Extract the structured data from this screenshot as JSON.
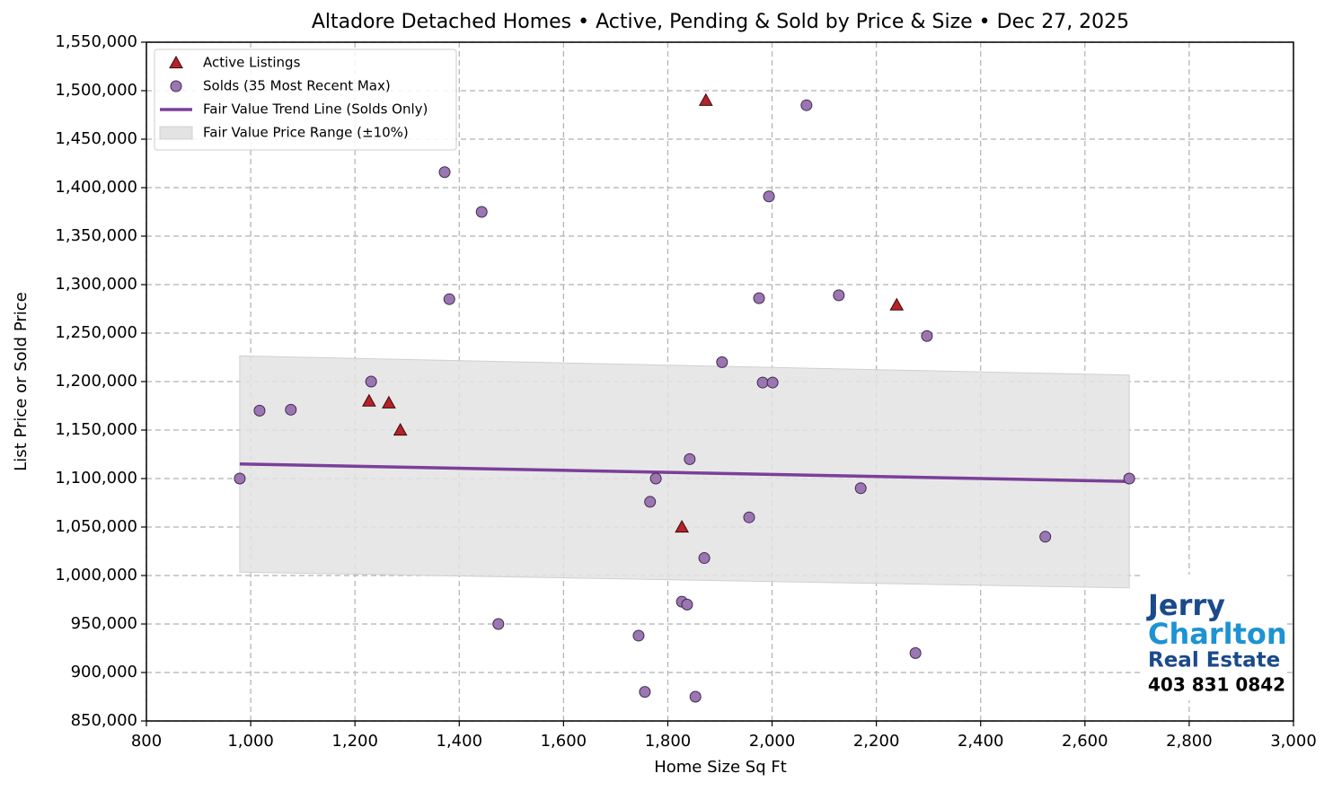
{
  "chart_data": {
    "type": "scatter",
    "title": "Altadore Detached Homes • Active, Pending & Sold by Price & Size • Dec 27, 2025",
    "xlabel": "Home Size Sq Ft",
    "ylabel": "List Price or Sold Price",
    "xlim": [
      800,
      3000
    ],
    "ylim": [
      850000,
      1550000
    ],
    "xticks": [
      800,
      {
        "value": 1000,
        "label": "1,000"
      },
      {
        "value": 1200,
        "label": "1,200"
      },
      {
        "value": 1400,
        "label": "1,400"
      },
      {
        "value": 1600,
        "label": "1,600"
      },
      {
        "value": 1800,
        "label": "1,800"
      },
      {
        "value": 2000,
        "label": "2,000"
      },
      {
        "value": 2200,
        "label": "2,200"
      },
      {
        "value": 2400,
        "label": "2,400"
      },
      {
        "value": 2600,
        "label": "2,600"
      },
      {
        "value": 2800,
        "label": "2,800"
      },
      {
        "value": 3000,
        "label": "3,000"
      }
    ],
    "yticks": [
      {
        "value": 850000,
        "label": "850,000"
      },
      {
        "value": 900000,
        "label": "900,000"
      },
      {
        "value": 950000,
        "label": "950,000"
      },
      {
        "value": 1000000,
        "label": "1,000,000"
      },
      {
        "value": 1050000,
        "label": "1,050,000"
      },
      {
        "value": 1100000,
        "label": "1,100,000"
      },
      {
        "value": 1150000,
        "label": "1,150,000"
      },
      {
        "value": 1200000,
        "label": "1,200,000"
      },
      {
        "value": 1250000,
        "label": "1,250,000"
      },
      {
        "value": 1300000,
        "label": "1,300,000"
      },
      {
        "value": 1350000,
        "label": "1,350,000"
      },
      {
        "value": 1400000,
        "label": "1,400,000"
      },
      {
        "value": 1450000,
        "label": "1,450,000"
      },
      {
        "value": 1500000,
        "label": "1,500,000"
      },
      {
        "value": 1550000,
        "label": "1,550,000"
      }
    ],
    "grid": true,
    "legend": "upper left",
    "series": [
      {
        "name": "Active Listings",
        "type": "scatter",
        "marker": "triangle",
        "color": "#b5222a",
        "x": [
          1873,
          2239,
          1227,
          1265,
          1287,
          1827
        ],
        "values": [
          1490000,
          1279000,
          1180000,
          1178000,
          1150000,
          1050000
        ]
      },
      {
        "name": "Solds (35 Most Recent Max)",
        "type": "scatter",
        "marker": "circle",
        "color": "#9b76b3",
        "x": [
          979,
          1017,
          1077,
          1231,
          1372,
          1443,
          1381,
          1475,
          1744,
          1756,
          1766,
          1777,
          1827,
          1837,
          1842,
          1853,
          1870,
          1904,
          1956,
          1975,
          1982,
          1994,
          2001,
          2066,
          2128,
          2170,
          2275,
          2297,
          2524,
          2685
        ],
        "values": [
          1100000,
          1170000,
          1171000,
          1200000,
          1416000,
          1375000,
          1285000,
          950000,
          938000,
          880000,
          1076000,
          1100000,
          973000,
          970000,
          1120000,
          875000,
          1018000,
          1220000,
          1060000,
          1286000,
          1199000,
          1391000,
          1199000,
          1485000,
          1289000,
          1090000,
          920000,
          1247000,
          1040000,
          1100000
        ]
      },
      {
        "name": "Fair Value Trend Line (Solds Only)",
        "type": "line",
        "color": "#7b3f99",
        "x": [
          979,
          2685
        ],
        "values": [
          1115000,
          1097000
        ]
      },
      {
        "name": "Fair Value Price Range (±10%)",
        "type": "band",
        "color": "#e3e3e3",
        "x": [
          979,
          2685
        ],
        "upper": [
          1226500,
          1206700
        ],
        "lower": [
          1003500,
          987300
        ]
      }
    ],
    "logo": [
      "Jerry",
      "Charlton",
      "Real Estate",
      "403 831 0842"
    ]
  }
}
